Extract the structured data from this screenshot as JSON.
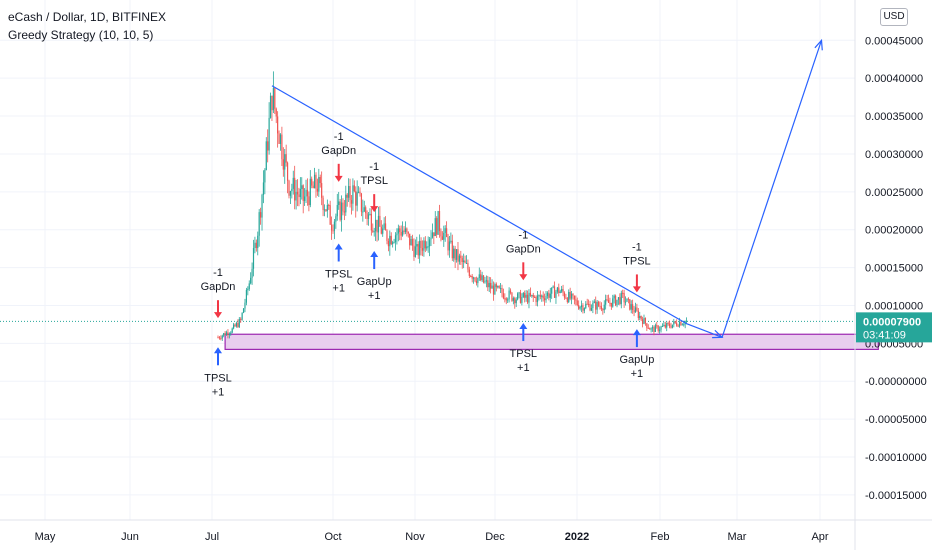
{
  "header": {
    "symbol_line": "eCash / Dollar, 1D, BITFINEX",
    "indicator_line": "Greedy Strategy (10, 10, 5)",
    "currency_button": "USD"
  },
  "price_badge": {
    "price": "0.00007900",
    "countdown": "03:41:09",
    "color": "#26a69a"
  },
  "colors": {
    "up": "#26a69a",
    "down": "#ef5350",
    "trendline": "#2962ff",
    "zone_fill": "#e8cdee",
    "zone_border": "#9c27b0"
  },
  "chart_data": {
    "type": "candlestick",
    "title": "eCash / Dollar, 1D, BITFINEX",
    "x_ticks": [
      "May",
      "Jun",
      "Jul",
      "Oct",
      "Nov",
      "Dec",
      "2022",
      "Feb",
      "Mar",
      "Apr"
    ],
    "y_ticks": [
      "0.00045000",
      "0.00040000",
      "0.00035000",
      "0.00030000",
      "0.00025000",
      "0.00020000",
      "0.00015000",
      "0.00010000",
      "0.00005000",
      "-0.00000000",
      "-0.00005000",
      "-0.00010000",
      "-0.00015000"
    ],
    "ylim": [
      -0.00017,
      0.00049
    ],
    "current_price": 7.9e-05,
    "price_path": [
      {
        "x": 0,
        "y": 5.8e-05
      },
      {
        "x": 10,
        "y": 6.8e-05
      },
      {
        "x": 16,
        "y": 8e-05
      },
      {
        "x": 22,
        "y": 0.00013
      },
      {
        "x": 28,
        "y": 0.0002
      },
      {
        "x": 33,
        "y": 0.00028
      },
      {
        "x": 38,
        "y": 0.00038
      },
      {
        "x": 40,
        "y": 0.00036
      },
      {
        "x": 45,
        "y": 0.00031
      },
      {
        "x": 50,
        "y": 0.00026
      },
      {
        "x": 60,
        "y": 0.00024
      },
      {
        "x": 70,
        "y": 0.00026
      },
      {
        "x": 80,
        "y": 0.00021
      },
      {
        "x": 95,
        "y": 0.00025
      },
      {
        "x": 105,
        "y": 0.00022
      },
      {
        "x": 120,
        "y": 0.00019
      },
      {
        "x": 130,
        "y": 0.0002
      },
      {
        "x": 140,
        "y": 0.00017
      },
      {
        "x": 155,
        "y": 0.00021
      },
      {
        "x": 165,
        "y": 0.00017
      },
      {
        "x": 180,
        "y": 0.00014
      },
      {
        "x": 195,
        "y": 0.00012
      },
      {
        "x": 210,
        "y": 0.00011
      },
      {
        "x": 225,
        "y": 0.00011
      },
      {
        "x": 240,
        "y": 0.00012
      },
      {
        "x": 255,
        "y": 0.0001
      },
      {
        "x": 270,
        "y": 0.0001
      },
      {
        "x": 285,
        "y": 0.00011
      },
      {
        "x": 295,
        "y": 9e-05
      },
      {
        "x": 305,
        "y": 6.8e-05
      },
      {
        "x": 315,
        "y": 7.2e-05
      },
      {
        "x": 325,
        "y": 7.8e-05
      },
      {
        "x": 330,
        "y": 7.9e-05
      }
    ],
    "trendlines": [
      {
        "from": {
          "x": 38,
          "y": 0.00039
        },
        "to": {
          "x": 330,
          "y": 7.6e-05
        }
      },
      {
        "from": {
          "x": 330,
          "y": 7.6e-05
        },
        "to": {
          "x": 355,
          "y": 5.8e-05
        }
      },
      {
        "from": {
          "x": 355,
          "y": 5.8e-05
        },
        "to": {
          "x": 425,
          "y": 0.00045
        }
      }
    ],
    "zone": {
      "x_start": 5,
      "x_end": 465,
      "y_top": 6.2e-05,
      "y_bottom": 4.2e-05
    },
    "signals": [
      {
        "label": "GapDn",
        "value": "-1",
        "dir": "down",
        "x": 0,
        "y": 7e-05
      },
      {
        "label": "TPSL",
        "value": "+1",
        "dir": "up",
        "x": 0,
        "y": 5.8e-05
      },
      {
        "label": "GapDn",
        "value": "-1",
        "dir": "down",
        "x": 85,
        "y": 0.00025
      },
      {
        "label": "TPSL",
        "value": "-1",
        "dir": "down",
        "x": 110,
        "y": 0.00021
      },
      {
        "label": "TPSL",
        "value": "+1",
        "dir": "up",
        "x": 85,
        "y": 0.000195
      },
      {
        "label": "GapUp",
        "value": "+1",
        "dir": "up",
        "x": 110,
        "y": 0.000185
      },
      {
        "label": "GapDn",
        "value": "-1",
        "dir": "down",
        "x": 215,
        "y": 0.00012
      },
      {
        "label": "TPSL",
        "value": "+1",
        "dir": "up",
        "x": 215,
        "y": 9e-05
      },
      {
        "label": "TPSL",
        "value": "-1",
        "dir": "down",
        "x": 295,
        "y": 0.000104
      },
      {
        "label": "GapUp",
        "value": "+1",
        "dir": "up",
        "x": 295,
        "y": 8.2e-05
      }
    ]
  }
}
